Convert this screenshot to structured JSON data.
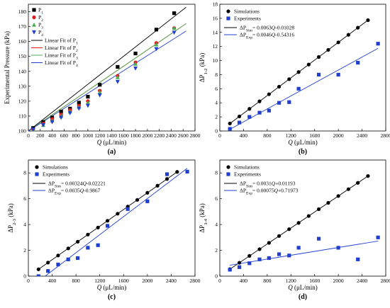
{
  "chart_data": [
    {
      "id": "a",
      "type": "scatter",
      "panel_label": "(a)",
      "xlabel": "Q (μL/min)",
      "ylabel": "Experimental Pressure (kPa)",
      "xlim": [
        0,
        2800
      ],
      "ylim": [
        100,
        185
      ],
      "xticks": [
        "0",
        "200",
        "400",
        "600",
        "800",
        "1000",
        "1200",
        "1400",
        "1600",
        "1800",
        "2000",
        "2200",
        "2400",
        "2600",
        "2800"
      ],
      "yticks": [
        "100",
        "110",
        "120",
        "130",
        "140",
        "150",
        "160",
        "170",
        "180"
      ],
      "legend_position": "top-left",
      "series": [
        {
          "name": "P1",
          "marker": "square",
          "color": "#000000",
          "x": [
            80,
            250,
            400,
            550,
            700,
            850,
            1000,
            1200,
            1500,
            1800,
            2150,
            2450
          ],
          "y": [
            102,
            106,
            109,
            113,
            115,
            119,
            123,
            131,
            143,
            152,
            168,
            179
          ]
        },
        {
          "name": "P2",
          "marker": "circle",
          "color": "#e31a1c",
          "x": [
            80,
            250,
            400,
            550,
            700,
            850,
            1000,
            1200,
            1500,
            1800,
            2150,
            2450
          ],
          "y": [
            101,
            105,
            108,
            111,
            114,
            117,
            120,
            127,
            137,
            146,
            159,
            169
          ]
        },
        {
          "name": "P3",
          "marker": "triangle-up",
          "color": "#4caf50",
          "x": [
            80,
            250,
            400,
            550,
            700,
            850,
            1000,
            1200,
            1500,
            1800,
            2150,
            2450
          ],
          "y": [
            101,
            104,
            107,
            110,
            113,
            116,
            119,
            126,
            136,
            145,
            158,
            169
          ]
        },
        {
          "name": "P4",
          "marker": "triangle-down",
          "color": "#1f3fd0",
          "x": [
            80,
            250,
            400,
            550,
            700,
            850,
            1000,
            1200,
            1500,
            1800,
            2150,
            2450
          ],
          "y": [
            101,
            104,
            106,
            109,
            112,
            115,
            117,
            124,
            133,
            142,
            155,
            166
          ]
        }
      ],
      "fits": [
        {
          "name": "Linear Fit of P1",
          "color": "#000000",
          "x": [
            0,
            2650
          ],
          "y": [
            100,
            183
          ]
        },
        {
          "name": "Linear Fit of P2",
          "color": "#e31a1c",
          "x": [
            0,
            2650
          ],
          "y": [
            100,
            172
          ]
        },
        {
          "name": "Linear Fit of P3",
          "color": "#4caf50",
          "x": [
            0,
            2650
          ],
          "y": [
            100,
            172
          ]
        },
        {
          "name": "Linear Fit of P4",
          "color": "#1f3fd0",
          "x": [
            0,
            2650
          ],
          "y": [
            100,
            167
          ]
        }
      ]
    },
    {
      "id": "b",
      "type": "scatter",
      "panel_label": "(b)",
      "xlabel": "Q (μL/min)",
      "ylabel": "ΔP1-2 (kPa)",
      "xlim": [
        0,
        2800
      ],
      "ylim": [
        0,
        18
      ],
      "xticks": [
        "0",
        "400",
        "800",
        "1200",
        "1600",
        "2000",
        "2400",
        "2800"
      ],
      "yticks": [
        "0",
        "2",
        "4",
        "6",
        "8",
        "10",
        "12",
        "14",
        "16",
        "18"
      ],
      "legend_position": "top-left",
      "series": [
        {
          "name": "Simulations",
          "marker": "circle",
          "color": "#000000",
          "x": [
            170,
            330,
            500,
            670,
            830,
            1000,
            1170,
            1330,
            1500,
            1670,
            1830,
            2000,
            2170,
            2330,
            2500
          ],
          "y": [
            1.06,
            2.07,
            3.14,
            4.21,
            5.22,
            6.29,
            7.36,
            8.37,
            9.44,
            10.51,
            11.52,
            12.59,
            13.66,
            14.67,
            15.74
          ]
        },
        {
          "name": "Experiments",
          "marker": "square",
          "color": "#1f3fd0",
          "x": [
            170,
            330,
            500,
            670,
            830,
            1000,
            1170,
            1330,
            1670,
            2000,
            2330,
            2670
          ],
          "y": [
            0.3,
            1.2,
            2.0,
            2.6,
            2.9,
            4.0,
            4.1,
            6.0,
            8.0,
            8.0,
            9.7,
            12.4
          ]
        }
      ],
      "fits": [
        {
          "name": "ΔPSim= 0.0063Q-0.01028",
          "color": "#000000",
          "x": [
            170,
            2500
          ],
          "y": [
            1.06,
            15.74
          ]
        },
        {
          "name": "ΔPExp= 0.0046Q-0.54316",
          "color": "#1f3fd0",
          "x": [
            170,
            2670
          ],
          "y": [
            0.24,
            11.74
          ]
        }
      ]
    },
    {
      "id": "c",
      "type": "scatter",
      "panel_label": "(c)",
      "xlabel": "Q (μL/min)",
      "ylabel": "ΔP2-3 (kPa)",
      "xlim": [
        0,
        2800
      ],
      "ylim": [
        0,
        9
      ],
      "xticks": [
        "0",
        "400",
        "800",
        "1200",
        "1600",
        "2000",
        "2400",
        "2800"
      ],
      "yticks": [
        "0",
        "2",
        "4",
        "6",
        "8"
      ],
      "legend_position": "top-left",
      "series": [
        {
          "name": "Simulations",
          "marker": "circle",
          "color": "#000000",
          "x": [
            170,
            330,
            500,
            670,
            830,
            1000,
            1170,
            1330,
            1500,
            1670,
            1830,
            2000,
            2170,
            2330,
            2500
          ],
          "y": [
            0.53,
            1.05,
            1.6,
            2.15,
            2.67,
            3.22,
            3.77,
            4.29,
            4.84,
            5.39,
            5.91,
            6.46,
            7.01,
            7.53,
            8.08
          ]
        },
        {
          "name": "Experiments",
          "marker": "square",
          "color": "#1f3fd0",
          "x": [
            170,
            330,
            500,
            670,
            830,
            1000,
            1170,
            1330,
            1670,
            2000,
            2330,
            2670
          ],
          "y": [
            0.0,
            0.4,
            0.9,
            1.3,
            1.4,
            2.2,
            2.4,
            3.9,
            5.2,
            5.8,
            7.9,
            8.1
          ]
        }
      ],
      "fits": [
        {
          "name": "ΔPSim= 0.00324Q-0.02221",
          "color": "#000000",
          "x": [
            170,
            2500
          ],
          "y": [
            0.53,
            8.08
          ]
        },
        {
          "name": "ΔPExp= 0.0035Q-0.9867",
          "color": "#1f3fd0",
          "x": [
            170,
            2670
          ],
          "y": [
            -0.39,
            8.36
          ]
        }
      ]
    },
    {
      "id": "d",
      "type": "scatter",
      "panel_label": "(d)",
      "xlabel": "Q (μL/min)",
      "ylabel": "ΔP3-4 (kPa)",
      "xlim": [
        0,
        2800
      ],
      "ylim": [
        0,
        9
      ],
      "xticks": [
        "0",
        "400",
        "800",
        "1200",
        "1600",
        "2000",
        "2400",
        "2800"
      ],
      "yticks": [
        "0",
        "2",
        "4",
        "6",
        "8"
      ],
      "legend_position": "top-left",
      "series": [
        {
          "name": "Simulations",
          "marker": "circle",
          "color": "#000000",
          "x": [
            170,
            330,
            500,
            670,
            830,
            1000,
            1170,
            1330,
            1500,
            1670,
            1830,
            2000,
            2170,
            2330,
            2500
          ],
          "y": [
            0.54,
            1.04,
            1.57,
            2.09,
            2.58,
            3.11,
            3.64,
            4.13,
            4.66,
            5.19,
            5.68,
            6.21,
            6.74,
            7.23,
            7.76
          ]
        },
        {
          "name": "Experiments",
          "marker": "square",
          "color": "#1f3fd0",
          "x": [
            170,
            330,
            500,
            670,
            830,
            1000,
            1170,
            1330,
            1670,
            2000,
            2330,
            2670
          ],
          "y": [
            0.5,
            0.7,
            1.0,
            1.3,
            1.4,
            1.7,
            1.6,
            2.2,
            2.9,
            2.2,
            1.3,
            3.0
          ]
        }
      ],
      "fits": [
        {
          "name": "ΔPSim= 0.0031Q+0.01193",
          "color": "#000000",
          "x": [
            170,
            2500
          ],
          "y": [
            0.54,
            7.76
          ]
        },
        {
          "name": "ΔPExp= 0.00075Q+0.71973",
          "color": "#1f3fd0",
          "x": [
            170,
            2670
          ],
          "y": [
            0.85,
            2.72
          ]
        }
      ]
    }
  ]
}
